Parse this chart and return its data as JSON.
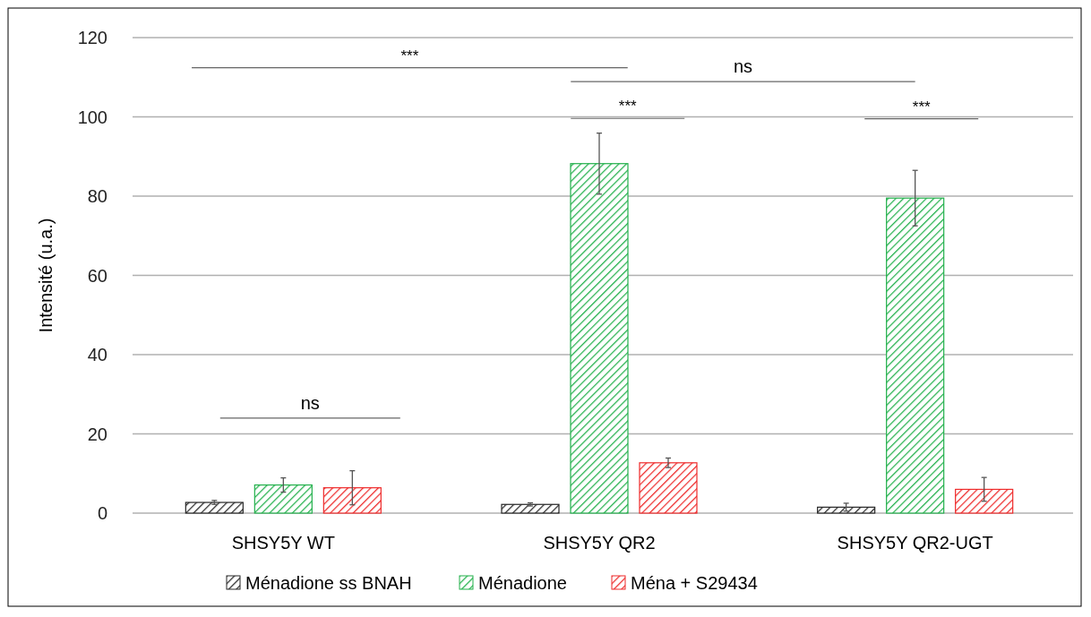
{
  "chart_data": {
    "type": "bar",
    "ylabel": "Intensité (u.a.)",
    "categories": [
      "SHSY5Y WT",
      "SHSY5Y QR2",
      "SHSY5Y QR2-UGT"
    ],
    "series": [
      {
        "name": "Ménadione ss BNAH",
        "color": "#262626",
        "values": [
          2.7,
          2.2,
          1.5
        ],
        "errors": [
          0.5,
          0.4,
          1
        ]
      },
      {
        "name": "Ménadione",
        "color": "#22b04b",
        "values": [
          7.1,
          88.2,
          79.5
        ],
        "errors": [
          1.8,
          7.7,
          7
        ]
      },
      {
        "name": "Ména + S29434",
        "color": "#ee2a2a",
        "values": [
          6.4,
          12.7,
          6.0
        ],
        "errors": [
          4.3,
          1.2,
          3
        ]
      }
    ],
    "ylim": [
      0,
      120
    ],
    "yticks": [
      0,
      20,
      40,
      60,
      80,
      100,
      120
    ],
    "grid": "y",
    "legend": "bottom",
    "annotations": [
      "ns",
      "***",
      "ns",
      "***",
      "***"
    ]
  }
}
